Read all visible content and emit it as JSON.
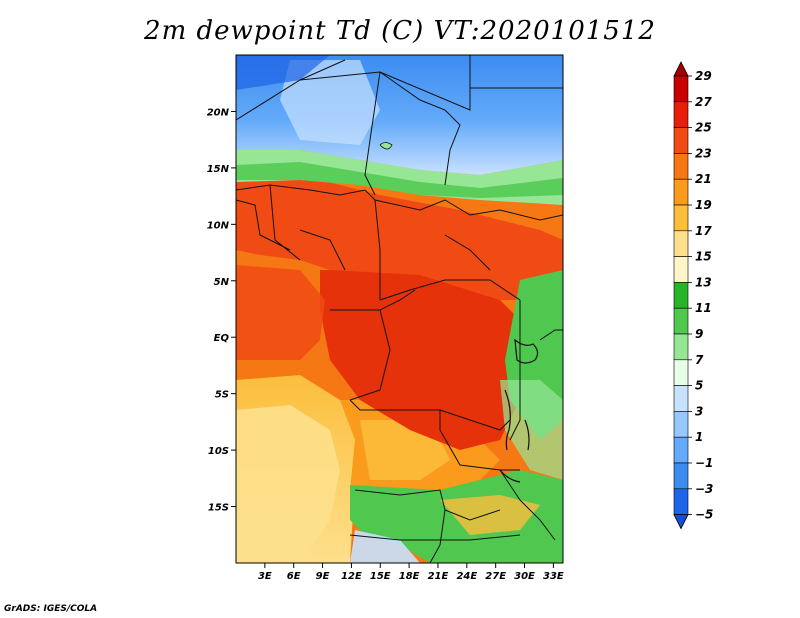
{
  "title": "2m dewpoint Td (C) VT:2020101512",
  "credit": "GrADS: IGES/COLA",
  "map": {
    "lon_range": [
      0,
      34
    ],
    "lat_range": [
      -20,
      25
    ],
    "lon_ticks": [
      "3E",
      "6E",
      "9E",
      "12E",
      "15E",
      "18E",
      "21E",
      "24E",
      "27E",
      "30E",
      "33E"
    ],
    "lat_ticks": [
      "20N",
      "15N",
      "10N",
      "5N",
      "EQ",
      "5S",
      "10S",
      "15S"
    ],
    "lon_tick_values": [
      3,
      6,
      9,
      12,
      15,
      18,
      21,
      24,
      27,
      30,
      33
    ],
    "lat_tick_values": [
      20,
      15,
      10,
      5,
      0,
      -5,
      -10,
      -15
    ]
  },
  "colorbar": {
    "labels": [
      "29",
      "27",
      "25",
      "23",
      "21",
      "19",
      "17",
      "15",
      "13",
      "11",
      "9",
      "7",
      "5",
      "3",
      "1",
      "−1",
      "−3",
      "−5"
    ],
    "colors": [
      "#a50000",
      "#c80000",
      "#e61e0a",
      "#f04b14",
      "#f57814",
      "#fa9b1e",
      "#fcbe3c",
      "#fde08c",
      "#fff5c8",
      "#28b428",
      "#50c850",
      "#96e696",
      "#e6ffe6",
      "#c8e1ff",
      "#96c8ff",
      "#64aafa",
      "#3c8cf0",
      "#1e64e6",
      "#1450d2"
    ]
  },
  "regions": {
    "sahara": "#5a9ff0",
    "sahel_green": "#50c850",
    "west_africa": "#f04b14",
    "congo": "#e6320a",
    "south_yellow": "#fde08c",
    "south_orange": "#fa9b1e",
    "zambia_green": "#50c850"
  }
}
